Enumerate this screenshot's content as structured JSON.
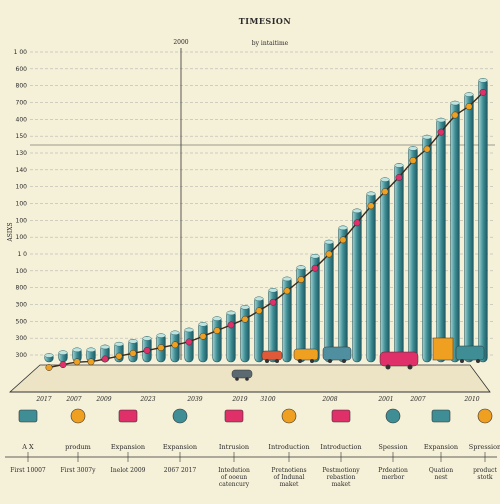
{
  "chart_data": {
    "type": "bar",
    "title": "TIMESION",
    "subtitle": "by intaitime",
    "marker_label": "2000",
    "ylabel": "ASIXS",
    "yticks": [
      "1 00",
      "600",
      "800",
      "700",
      "400",
      "150",
      "130",
      "140",
      "100",
      "100",
      "100",
      "100",
      "1 0",
      "100",
      "800",
      "300",
      "500",
      "300",
      "300"
    ],
    "xticks": [
      "2017",
      "2007",
      "2009",
      "2023",
      "2039",
      "2019",
      "3100",
      "2008",
      "2001",
      "2007",
      "2010"
    ],
    "milestones_row1": [
      "A X",
      "produm",
      "Expansion",
      "Expansion",
      "Intrusion",
      "Introduction",
      "Introduction",
      "Spession",
      "Expansion",
      "Spression"
    ],
    "milestones_row2": [
      "First 10007",
      "First 3007y",
      "Inelot 2009",
      "2067 2017",
      "Intedution of ooeun catencury",
      "Pretnotiens of Indunal maket",
      "Pestmotiony rebastion maket",
      "Prdeation merbor",
      "Quation nest",
      "product stotk"
    ],
    "values": [
      3,
      4,
      5,
      5,
      6,
      7,
      8,
      9,
      10,
      11,
      12,
      14,
      16,
      18,
      20,
      23,
      26,
      30,
      34,
      38,
      43,
      48,
      54,
      60,
      65,
      70,
      76,
      80,
      86,
      92,
      95,
      100
    ],
    "ylim": [
      0,
      110
    ],
    "grid": true,
    "colors": {
      "background": "#f5f0d8",
      "bar": "#3f8e96",
      "bar_dark": "#1f5a62",
      "line": "#3a2a1a",
      "dot_orange": "#f0a020",
      "dot_pink": "#e0306a",
      "grid": "#a9a9a9"
    }
  }
}
